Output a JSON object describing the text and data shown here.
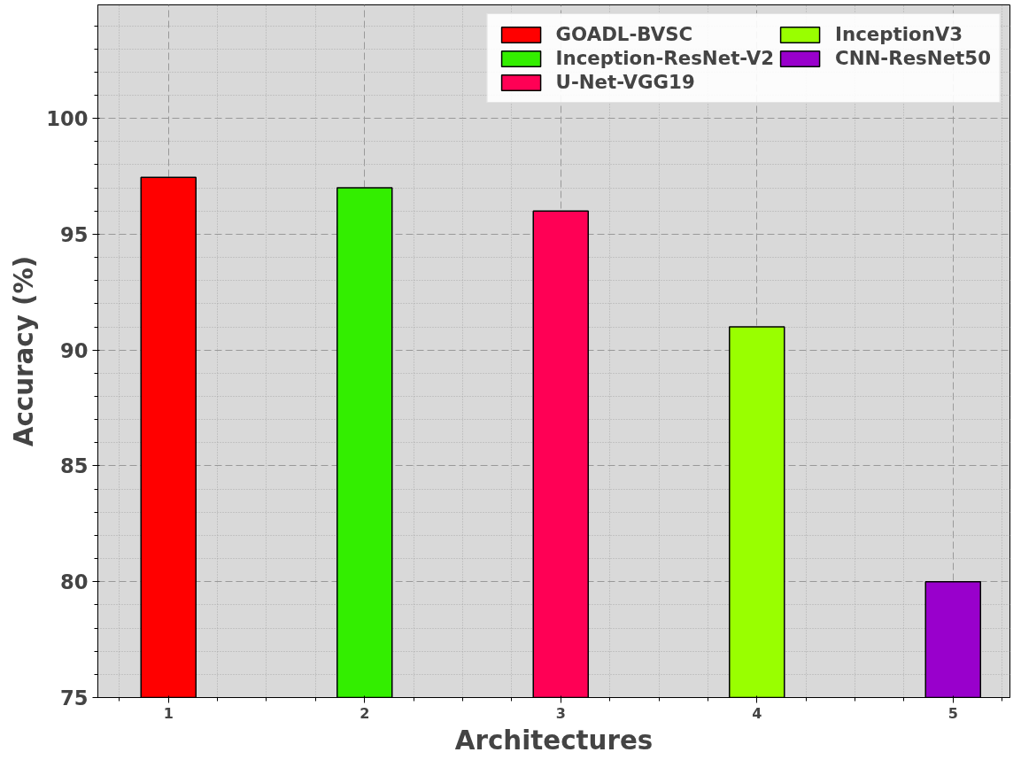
{
  "chart_data": {
    "type": "bar",
    "xlabel": "Architectures",
    "ylabel": "Accuracy (%)",
    "xlim": [
      0.64,
      5.29
    ],
    "ylim": [
      75,
      104.9
    ],
    "xticks": [
      1,
      2,
      3,
      4,
      5
    ],
    "yticks": [
      75,
      80,
      85,
      90,
      95,
      100
    ],
    "grid": true,
    "legend": "top right",
    "series": [
      {
        "name": "GOADL-BVSC",
        "color": "#ff0000",
        "x": [
          1
        ],
        "values": [
          97.45
        ]
      },
      {
        "name": "Inception-ResNet-V2",
        "color": "#33ee00",
        "x": [
          2
        ],
        "values": [
          97.0
        ]
      },
      {
        "name": "U-Net-VGG19",
        "color": "#ff0055",
        "x": [
          3
        ],
        "values": [
          96.0
        ]
      },
      {
        "name": "InceptionV3",
        "color": "#99ff00",
        "x": [
          4
        ],
        "values": [
          91.0
        ]
      },
      {
        "name": "CNN-ResNet50",
        "color": "#9900cc",
        "x": [
          5
        ],
        "values": [
          80.0
        ]
      }
    ]
  }
}
